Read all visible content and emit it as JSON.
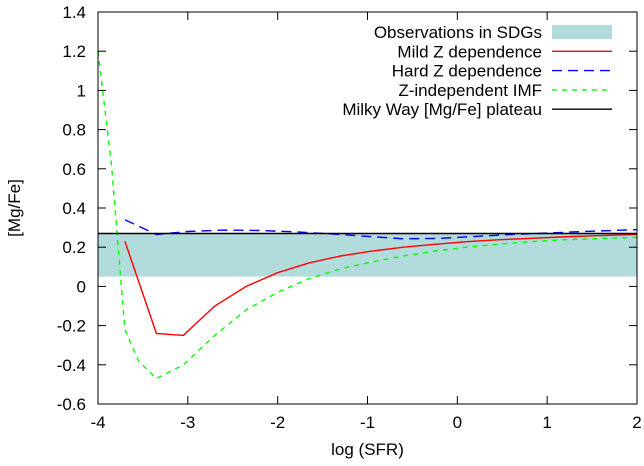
{
  "chart_data": {
    "type": "line",
    "xlabel": "log (SFR)",
    "ylabel": "[Mg/Fe]",
    "xlim": [
      -4,
      2
    ],
    "ylim": [
      -0.6,
      1.4
    ],
    "xticks": [
      -4,
      -3,
      -2,
      -1,
      0,
      1,
      2
    ],
    "xtick_labels": [
      "-4",
      "-3",
      "-2",
      "-1",
      "0",
      "1",
      "2"
    ],
    "yticks": [
      -0.6,
      -0.4,
      -0.2,
      0,
      0.2,
      0.4,
      0.6,
      0.8,
      1,
      1.2,
      1.4
    ],
    "ytick_labels": [
      "-0.6",
      "-0.4",
      "-0.2",
      "0",
      "0.2",
      "0.4",
      "0.6",
      "0.8",
      "1",
      "1.2",
      "1.4"
    ],
    "grid": false,
    "legend_position": "top-right",
    "band": {
      "name": "Observations in SDGs",
      "y_range": [
        0.05,
        0.27
      ],
      "color": "#b2dcdc"
    },
    "series": [
      {
        "name": "Mild Z dependence",
        "color": "#ff0000",
        "dash": "solid",
        "x": [
          -3.7,
          -3.35,
          -3.05,
          -2.7,
          -2.35,
          -2.0,
          -1.65,
          -1.3,
          -0.95,
          -0.6,
          -0.25,
          0.1,
          0.45,
          0.8,
          1.15,
          1.5,
          2.0
        ],
        "y": [
          0.23,
          -0.24,
          -0.25,
          -0.1,
          0.0,
          0.07,
          0.12,
          0.155,
          0.18,
          0.2,
          0.215,
          0.228,
          0.238,
          0.245,
          0.252,
          0.258,
          0.265
        ]
      },
      {
        "name": "Hard Z dependence",
        "color": "#0000ff",
        "dash": "dashed",
        "x": [
          -3.7,
          -3.35,
          -3.0,
          -2.6,
          -2.2,
          -1.8,
          -1.4,
          -1.0,
          -0.6,
          -0.2,
          0.2,
          0.6,
          1.0,
          1.4,
          2.0
        ],
        "y": [
          0.34,
          0.265,
          0.28,
          0.287,
          0.285,
          0.278,
          0.268,
          0.255,
          0.243,
          0.245,
          0.255,
          0.265,
          0.272,
          0.28,
          0.29
        ]
      },
      {
        "name": "Z-independent IMF",
        "color": "#00ff00",
        "dash": "dotted",
        "x": [
          -4.0,
          -3.85,
          -3.7,
          -3.55,
          -3.35,
          -3.05,
          -2.7,
          -2.35,
          -2.0,
          -1.65,
          -1.3,
          -0.95,
          -0.6,
          -0.25,
          0.1,
          0.45,
          0.8,
          1.15,
          1.5,
          2.0
        ],
        "y": [
          1.2,
          0.62,
          -0.22,
          -0.38,
          -0.47,
          -0.4,
          -0.25,
          -0.12,
          -0.03,
          0.04,
          0.09,
          0.125,
          0.155,
          0.18,
          0.2,
          0.215,
          0.228,
          0.237,
          0.243,
          0.25
        ]
      },
      {
        "name": "Milky Way [Mg/Fe] plateau",
        "color": "#000000",
        "dash": "solid",
        "x": [
          -4,
          2
        ],
        "y": [
          0.27,
          0.27
        ]
      }
    ]
  }
}
